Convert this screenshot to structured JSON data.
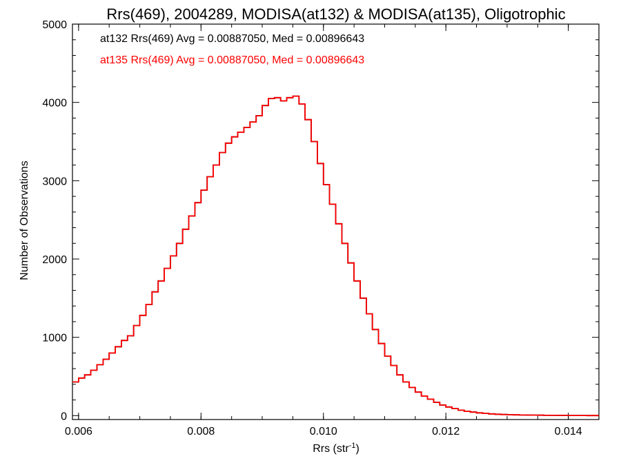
{
  "chart_data": {
    "type": "line",
    "title": "Rrs(469), 2004289, MODISA(at132) & MODISA(at135), Oligotrophic",
    "xlabel": "Rrs (str",
    "xlabel_superscript": "-1",
    "xlabel_suffix": ")",
    "ylabel": "Number of Observations",
    "xlim": [
      0.0059,
      0.0145
    ],
    "ylim": [
      -50,
      5000
    ],
    "x_ticks": [
      {
        "value": 0.006,
        "label": "0.006"
      },
      {
        "value": 0.008,
        "label": "0.008"
      },
      {
        "value": 0.01,
        "label": "0.010"
      },
      {
        "value": 0.012,
        "label": "0.012"
      },
      {
        "value": 0.014,
        "label": "0.014"
      }
    ],
    "y_ticks": [
      {
        "value": 0,
        "label": "0"
      },
      {
        "value": 1000,
        "label": "1000"
      },
      {
        "value": 2000,
        "label": "2000"
      },
      {
        "value": 3000,
        "label": "3000"
      },
      {
        "value": 4000,
        "label": "4000"
      },
      {
        "value": 5000,
        "label": "5000"
      }
    ],
    "annotations": [
      {
        "text": "at132 Rrs(469) Avg = 0.00887050, Med = 0.00896643",
        "color": "#000000"
      },
      {
        "text": "at135 Rrs(469) Avg = 0.00887050, Med = 0.00896643",
        "color": "#ff0000"
      }
    ],
    "series": [
      {
        "color": "#000000",
        "x": [
          0.0059,
          0.006,
          0.0061,
          0.0062,
          0.0063,
          0.0064,
          0.0065,
          0.0066,
          0.0067,
          0.0068,
          0.0069,
          0.007,
          0.0071,
          0.0072,
          0.0073,
          0.0074,
          0.0075,
          0.0076,
          0.0077,
          0.0078,
          0.0079,
          0.008,
          0.0081,
          0.0082,
          0.0083,
          0.0084,
          0.0085,
          0.0086,
          0.0087,
          0.0088,
          0.0089,
          0.009,
          0.0091,
          0.0092,
          0.0093,
          0.0094,
          0.0095,
          0.0096,
          0.0097,
          0.0098,
          0.0099,
          0.01,
          0.0101,
          0.0102,
          0.0103,
          0.0104,
          0.0105,
          0.0106,
          0.0107,
          0.0108,
          0.0109,
          0.011,
          0.0111,
          0.0112,
          0.0113,
          0.0114,
          0.0115,
          0.0116,
          0.0117,
          0.0118,
          0.0119,
          0.012,
          0.0121,
          0.0122,
          0.0123,
          0.0124,
          0.0125,
          0.0126,
          0.0127,
          0.0128,
          0.0129,
          0.013,
          0.0131,
          0.0132,
          0.0133,
          0.0134,
          0.0135,
          0.0136,
          0.0137,
          0.0138,
          0.0139,
          0.014,
          0.0141,
          0.0142,
          0.0143,
          0.0144,
          0.0145
        ],
        "y": [
          430,
          480,
          520,
          580,
          650,
          720,
          800,
          880,
          960,
          1020,
          1150,
          1280,
          1420,
          1580,
          1720,
          1880,
          2040,
          2200,
          2380,
          2550,
          2720,
          2880,
          3050,
          3200,
          3360,
          3480,
          3560,
          3620,
          3680,
          3750,
          3830,
          3960,
          4050,
          4060,
          4020,
          4060,
          4080,
          3980,
          3780,
          3500,
          3220,
          2950,
          2700,
          2450,
          2200,
          1950,
          1720,
          1500,
          1300,
          1100,
          920,
          760,
          640,
          520,
          430,
          360,
          300,
          250,
          210,
          170,
          135,
          110,
          90,
          70,
          55,
          45,
          35,
          28,
          22,
          18,
          14,
          12,
          10,
          8,
          7,
          6,
          5,
          4,
          4,
          3,
          3,
          2,
          2,
          2,
          1,
          1,
          1
        ]
      },
      {
        "color": "#ff0000",
        "x": [
          0.0059,
          0.006,
          0.0061,
          0.0062,
          0.0063,
          0.0064,
          0.0065,
          0.0066,
          0.0067,
          0.0068,
          0.0069,
          0.007,
          0.0071,
          0.0072,
          0.0073,
          0.0074,
          0.0075,
          0.0076,
          0.0077,
          0.0078,
          0.0079,
          0.008,
          0.0081,
          0.0082,
          0.0083,
          0.0084,
          0.0085,
          0.0086,
          0.0087,
          0.0088,
          0.0089,
          0.009,
          0.0091,
          0.0092,
          0.0093,
          0.0094,
          0.0095,
          0.0096,
          0.0097,
          0.0098,
          0.0099,
          0.01,
          0.0101,
          0.0102,
          0.0103,
          0.0104,
          0.0105,
          0.0106,
          0.0107,
          0.0108,
          0.0109,
          0.011,
          0.0111,
          0.0112,
          0.0113,
          0.0114,
          0.0115,
          0.0116,
          0.0117,
          0.0118,
          0.0119,
          0.012,
          0.0121,
          0.0122,
          0.0123,
          0.0124,
          0.0125,
          0.0126,
          0.0127,
          0.0128,
          0.0129,
          0.013,
          0.0131,
          0.0132,
          0.0133,
          0.0134,
          0.0135,
          0.0136,
          0.0137,
          0.0138,
          0.0139,
          0.014,
          0.0141,
          0.0142,
          0.0143,
          0.0144,
          0.0145
        ],
        "y": [
          430,
          480,
          520,
          580,
          650,
          720,
          800,
          880,
          960,
          1020,
          1150,
          1280,
          1420,
          1580,
          1720,
          1880,
          2040,
          2200,
          2380,
          2550,
          2720,
          2880,
          3050,
          3200,
          3360,
          3480,
          3560,
          3620,
          3680,
          3750,
          3830,
          3960,
          4050,
          4060,
          4020,
          4060,
          4080,
          3980,
          3780,
          3500,
          3220,
          2950,
          2700,
          2450,
          2200,
          1950,
          1720,
          1500,
          1300,
          1100,
          920,
          760,
          640,
          520,
          430,
          360,
          300,
          250,
          210,
          170,
          135,
          110,
          90,
          70,
          55,
          45,
          35,
          28,
          22,
          18,
          14,
          12,
          10,
          8,
          7,
          6,
          5,
          4,
          4,
          3,
          3,
          2,
          2,
          2,
          1,
          1,
          1
        ]
      }
    ],
    "grid": false,
    "legend": "none"
  }
}
